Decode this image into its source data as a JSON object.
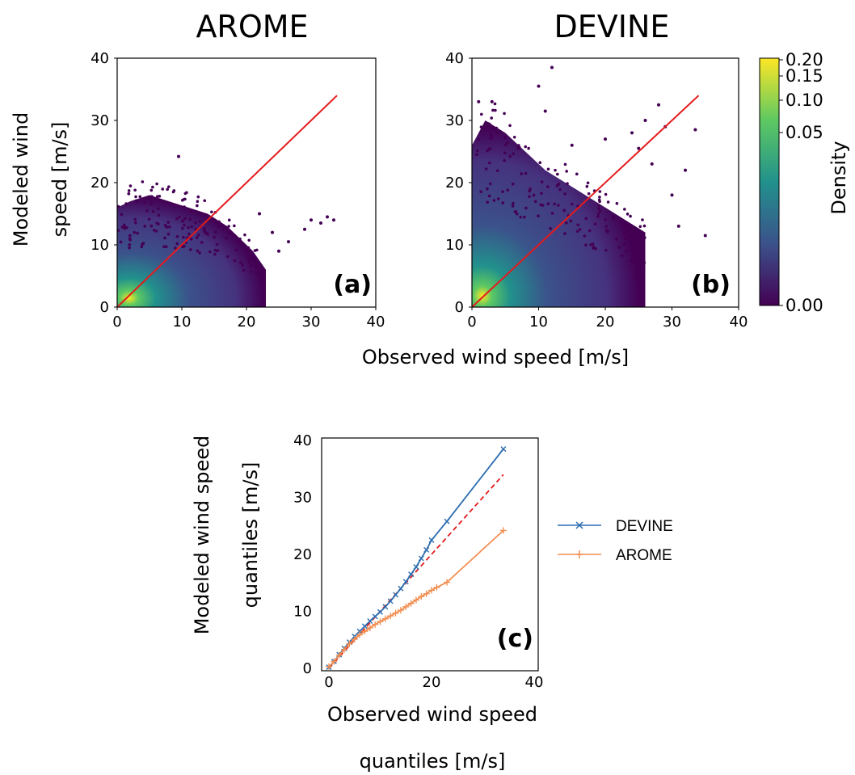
{
  "figure": {
    "xlabel_top": "Observed wind speed [m/s]",
    "colorbar_label": "Density",
    "colorbar_ticks": [
      "0.20",
      "0.15",
      "0.10",
      "0.05",
      "0.00"
    ],
    "colormap": [
      "#440154",
      "#3b528b",
      "#21918c",
      "#5ec962",
      "#fde725"
    ]
  },
  "chart_data": [
    {
      "type": "scatter",
      "title": "AROME",
      "panel_label": "(a)",
      "ylabel_lines": [
        "Modeled wind",
        "speed [m/s]"
      ],
      "xlim": [
        0,
        40
      ],
      "ylim": [
        0,
        40
      ],
      "xticks": [
        0,
        10,
        20,
        30,
        40
      ],
      "yticks": [
        0,
        10,
        20,
        30,
        40
      ],
      "grid": false,
      "color_encoding": "point density",
      "reference_line": {
        "x": [
          0,
          34
        ],
        "y": [
          0,
          34
        ],
        "color": "#e41a1c"
      },
      "approx_envelope": {
        "x": [
          0,
          2,
          5,
          8,
          11,
          14,
          17,
          19,
          21,
          23
        ],
        "y_max": [
          16,
          17,
          18,
          17,
          16,
          15,
          13,
          11,
          9,
          6
        ]
      },
      "outliers": [
        [
          9.5,
          24.2
        ],
        [
          30,
          14
        ],
        [
          31.5,
          13.5
        ],
        [
          32.5,
          14.5
        ],
        [
          33.5,
          14
        ],
        [
          29,
          12.5
        ],
        [
          26.5,
          10.5
        ],
        [
          25,
          9
        ],
        [
          24,
          12
        ],
        [
          22,
          15
        ]
      ]
    },
    {
      "type": "scatter",
      "title": "DEVINE",
      "panel_label": "(b)",
      "xlim": [
        0,
        40
      ],
      "ylim": [
        0,
        40
      ],
      "xticks": [
        0,
        10,
        20,
        30,
        40
      ],
      "yticks": [
        0,
        10,
        20,
        30,
        40
      ],
      "grid": false,
      "color_encoding": "point density",
      "reference_line": {
        "x": [
          0,
          34
        ],
        "y": [
          0,
          34
        ],
        "color": "#e41a1c"
      },
      "approx_envelope": {
        "x": [
          0,
          2,
          5,
          8,
          11,
          14,
          17,
          20,
          23,
          26
        ],
        "y_max": [
          26,
          30,
          28,
          25,
          22,
          20,
          18,
          16,
          14,
          12
        ]
      },
      "outliers": [
        [
          12,
          38.5
        ],
        [
          10,
          35.5
        ],
        [
          3,
          33
        ],
        [
          1,
          33
        ],
        [
          24,
          28
        ],
        [
          26,
          30
        ],
        [
          28,
          32.5
        ],
        [
          29,
          29
        ],
        [
          33.5,
          28.5
        ],
        [
          32,
          22
        ],
        [
          35,
          11.5
        ],
        [
          31,
          13
        ],
        [
          30,
          18
        ],
        [
          27,
          23
        ],
        [
          25,
          25.5
        ],
        [
          20,
          27
        ],
        [
          15,
          26
        ],
        [
          11,
          31.5
        ]
      ]
    },
    {
      "type": "line",
      "panel_label": "(c)",
      "xlabel_lines": [
        "Observed wind speed",
        "quantiles [m/s]"
      ],
      "ylabel_lines": [
        "Modeled wind speed",
        "quantiles [m/s]"
      ],
      "xlim": [
        0,
        40
      ],
      "ylim": [
        0,
        40
      ],
      "xticks": [
        0,
        20,
        40
      ],
      "yticks": [
        0,
        10,
        20,
        30,
        40
      ],
      "grid": false,
      "legend_position": "right",
      "reference_line": {
        "x": [
          0,
          34
        ],
        "y": [
          0,
          34
        ],
        "style": "dashed",
        "color": "#e41a1c"
      },
      "series": [
        {
          "name": "DEVINE",
          "color": "#2b6cb0",
          "marker": "x",
          "x": [
            0,
            1,
            2,
            3,
            4,
            5,
            6,
            7,
            8,
            9,
            10,
            11,
            12,
            13,
            14,
            15,
            16,
            17,
            18,
            19,
            20,
            23,
            34
          ],
          "y": [
            0.2,
            1.2,
            2.4,
            3.5,
            4.6,
            5.6,
            6.5,
            7.4,
            8.3,
            9.1,
            9.9,
            10.8,
            11.8,
            12.9,
            14.0,
            15.2,
            16.5,
            17.8,
            19.3,
            20.8,
            22.5,
            25.8,
            38.5
          ]
        },
        {
          "name": "AROME",
          "color": "#f28e52",
          "marker": "+",
          "x": [
            0,
            1,
            2,
            3,
            4,
            5,
            6,
            7,
            8,
            9,
            10,
            11,
            12,
            13,
            14,
            15,
            16,
            17,
            18,
            19,
            20,
            21,
            23,
            34
          ],
          "y": [
            0.3,
            1.2,
            2.3,
            3.3,
            4.3,
            5.1,
            5.9,
            6.5,
            7.1,
            7.7,
            8.2,
            8.7,
            9.2,
            9.7,
            10.2,
            10.8,
            11.4,
            12.0,
            12.6,
            13.1,
            13.7,
            14.2,
            15.1,
            24.2
          ]
        }
      ]
    }
  ]
}
